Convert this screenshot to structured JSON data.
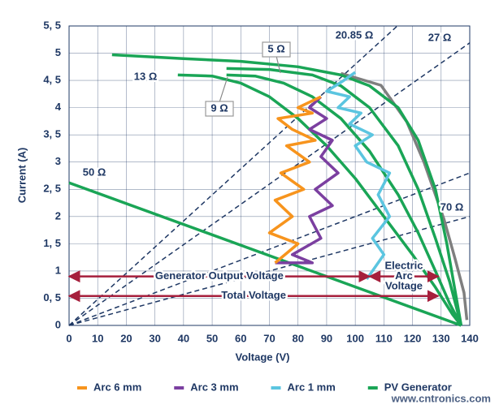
{
  "chart_data": {
    "type": "line",
    "x_label": "Voltage (V)",
    "y_label": "Current (A)",
    "xlim": [
      0,
      140
    ],
    "ylim": [
      0,
      5.5
    ],
    "xticks": [
      0,
      10,
      20,
      30,
      40,
      50,
      60,
      70,
      80,
      90,
      100,
      110,
      120,
      130,
      140
    ],
    "yticks": [
      0,
      {
        "value": 0.5,
        "label": "0, 5"
      },
      1,
      {
        "value": 1.5,
        "label": "1, 5"
      },
      2,
      {
        "value": 2.5,
        "label": "2, 5"
      },
      3,
      {
        "value": 3.5,
        "label": "3, 5"
      },
      4,
      {
        "value": 4.5,
        "label": "4, 5"
      },
      5,
      {
        "value": 5.5,
        "label": "5, 5"
      }
    ],
    "grid": true,
    "series": [
      {
        "name": "Arc 6 mm",
        "color": "#f7941d",
        "x": [
          72,
          80,
          70,
          78,
          72,
          82,
          74,
          84,
          76,
          86,
          78,
          73,
          85,
          80,
          88
        ],
        "values": [
          1.15,
          1.5,
          1.7,
          2.0,
          2.3,
          2.5,
          2.8,
          3.0,
          3.3,
          3.4,
          3.6,
          3.8,
          3.9,
          4.0,
          4.2
        ]
      },
      {
        "name": "Arc 3 mm",
        "color": "#7b3fa0",
        "x": [
          72,
          85,
          78,
          88,
          84,
          92,
          86,
          94,
          88,
          92,
          84,
          90,
          84,
          88
        ],
        "values": [
          1.15,
          1.15,
          1.3,
          1.6,
          2.0,
          2.2,
          2.5,
          2.8,
          3.1,
          3.4,
          3.6,
          3.8,
          4.0,
          4.2
        ]
      },
      {
        "name": "Arc 1 mm",
        "color": "#5bc5e0",
        "x": [
          104,
          110,
          106,
          112,
          108,
          112,
          104,
          100,
          106,
          98,
          102,
          94,
          98,
          90,
          96,
          100
        ],
        "values": [
          0.85,
          1.3,
          1.6,
          2.0,
          2.4,
          2.8,
          3.0,
          3.3,
          3.5,
          3.7,
          3.9,
          4.0,
          4.2,
          4.3,
          4.5,
          4.65
        ]
      },
      {
        "name": "PV Generator",
        "color": "#1aa556",
        "x": [
          15,
          40,
          60,
          80,
          95,
          105,
          115,
          122,
          128,
          132,
          135,
          137,
          null,
          55,
          70,
          85,
          95,
          105,
          115,
          122,
          128,
          133,
          137,
          null,
          55,
          65,
          75,
          85,
          95,
          105,
          115,
          122,
          128,
          133,
          137,
          null,
          38,
          50,
          60,
          70,
          80,
          90,
          100,
          110,
          120,
          128,
          134,
          137,
          null,
          0,
          137
        ],
        "values": [
          4.97,
          4.9,
          4.85,
          4.75,
          4.6,
          4.4,
          4.0,
          3.4,
          2.5,
          1.5,
          0.6,
          0,
          null,
          4.72,
          4.7,
          4.6,
          4.4,
          4.0,
          3.3,
          2.5,
          1.6,
          0.8,
          0,
          null,
          4.6,
          4.58,
          4.45,
          4.2,
          3.8,
          3.2,
          2.4,
          1.7,
          1.0,
          0.4,
          0,
          null,
          4.6,
          4.58,
          4.45,
          4.2,
          3.8,
          3.3,
          2.7,
          2.0,
          1.3,
          0.7,
          0.2,
          0,
          null,
          2.62,
          0
        ]
      },
      {
        "color": "#7f7f7f",
        "x": [
          95,
          109,
          118,
          124,
          131,
          135,
          138,
          139
        ],
        "values": [
          4.63,
          4.41,
          3.74,
          3.0,
          1.95,
          1.2,
          0.6,
          0.1
        ]
      }
    ],
    "load_lines": [
      {
        "x": [
          0,
          114.7
        ],
        "values": [
          0,
          5.5
        ]
      },
      {
        "x": [
          0,
          140
        ],
        "values": [
          0,
          5.19
        ]
      },
      {
        "x": [
          0,
          140
        ],
        "values": [
          0,
          2.8
        ]
      },
      {
        "x": [
          0,
          140
        ],
        "values": [
          0,
          2.0
        ]
      }
    ],
    "load_line_color": "#1f3864",
    "annotations": [
      "5 Ω",
      "9 Ω",
      "13 Ω",
      "20.85 Ω",
      "27 Ω",
      "50 Ω",
      "70 Ω"
    ],
    "arrows": [
      {
        "label": [
          "Generator Output Voltage"
        ],
        "x": [
          0,
          105
        ],
        "y": 0.9
      },
      {
        "label": [
          "Total Voltage"
        ],
        "x": [
          0,
          129
        ],
        "y": 0.54
      },
      {
        "label": [
          "Electric",
          "Arc",
          "Voltage"
        ],
        "x": [
          105,
          129
        ],
        "y": 0.9
      }
    ],
    "arrow_color": "#a61f3c",
    "watermark": "www.cntronics.com"
  }
}
